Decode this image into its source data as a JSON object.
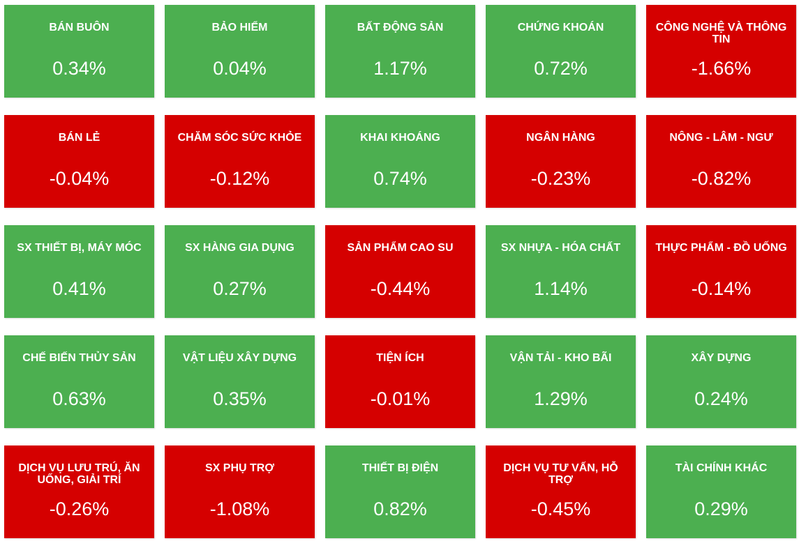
{
  "colors": {
    "positive": "#4caf50",
    "negative": "#d50000",
    "text": "#ffffff"
  },
  "chart_data": {
    "type": "heatmap",
    "values_unit": "%",
    "sectors": [
      {
        "name": "BÁN BUÔN",
        "value": 0.34,
        "display": "0.34%"
      },
      {
        "name": "BẢO HIỂM",
        "value": 0.04,
        "display": "0.04%"
      },
      {
        "name": "BẤT ĐỘNG SẢN",
        "value": 1.17,
        "display": "1.17%"
      },
      {
        "name": "CHỨNG KHOÁN",
        "value": 0.72,
        "display": "0.72%"
      },
      {
        "name": "CÔNG NGHỆ VÀ THÔNG TIN",
        "value": -1.66,
        "display": "-1.66%"
      },
      {
        "name": "BÁN LẺ",
        "value": -0.04,
        "display": "-0.04%"
      },
      {
        "name": "CHĂM SÓC SỨC KHỎE",
        "value": -0.12,
        "display": "-0.12%"
      },
      {
        "name": "KHAI KHOÁNG",
        "value": 0.74,
        "display": "0.74%"
      },
      {
        "name": "NGÂN HÀNG",
        "value": -0.23,
        "display": "-0.23%"
      },
      {
        "name": "NÔNG - LÂM - NGƯ",
        "value": -0.82,
        "display": "-0.82%"
      },
      {
        "name": "SX THIẾT BỊ, MÁY MÓC",
        "value": 0.41,
        "display": "0.41%"
      },
      {
        "name": "SX HÀNG GIA DỤNG",
        "value": 0.27,
        "display": "0.27%"
      },
      {
        "name": "SẢN PHẨM CAO SU",
        "value": -0.44,
        "display": "-0.44%"
      },
      {
        "name": "SX NHỰA - HÓA CHẤT",
        "value": 1.14,
        "display": "1.14%"
      },
      {
        "name": "THỰC PHẨM - ĐỒ UỐNG",
        "value": -0.14,
        "display": "-0.14%"
      },
      {
        "name": "CHẾ BIẾN THỦY SẢN",
        "value": 0.63,
        "display": "0.63%"
      },
      {
        "name": "VẬT LIỆU XÂY DỰNG",
        "value": 0.35,
        "display": "0.35%"
      },
      {
        "name": "TIỆN ÍCH",
        "value": -0.01,
        "display": "-0.01%"
      },
      {
        "name": "VẬN TẢI - KHO BÃI",
        "value": 1.29,
        "display": "1.29%"
      },
      {
        "name": "XÂY DỰNG",
        "value": 0.24,
        "display": "0.24%"
      },
      {
        "name": "DỊCH VỤ LƯU TRÚ, ĂN UỐNG, GIẢI TRÍ",
        "value": -0.26,
        "display": "-0.26%"
      },
      {
        "name": "SX PHỤ TRỢ",
        "value": -1.08,
        "display": "-1.08%"
      },
      {
        "name": "THIẾT BỊ ĐIỆN",
        "value": 0.82,
        "display": "0.82%"
      },
      {
        "name": "DỊCH VỤ TƯ VẤN, HỖ TRỢ",
        "value": -0.45,
        "display": "-0.45%"
      },
      {
        "name": "TÀI CHÍNH KHÁC",
        "value": 0.29,
        "display": "0.29%"
      }
    ]
  }
}
